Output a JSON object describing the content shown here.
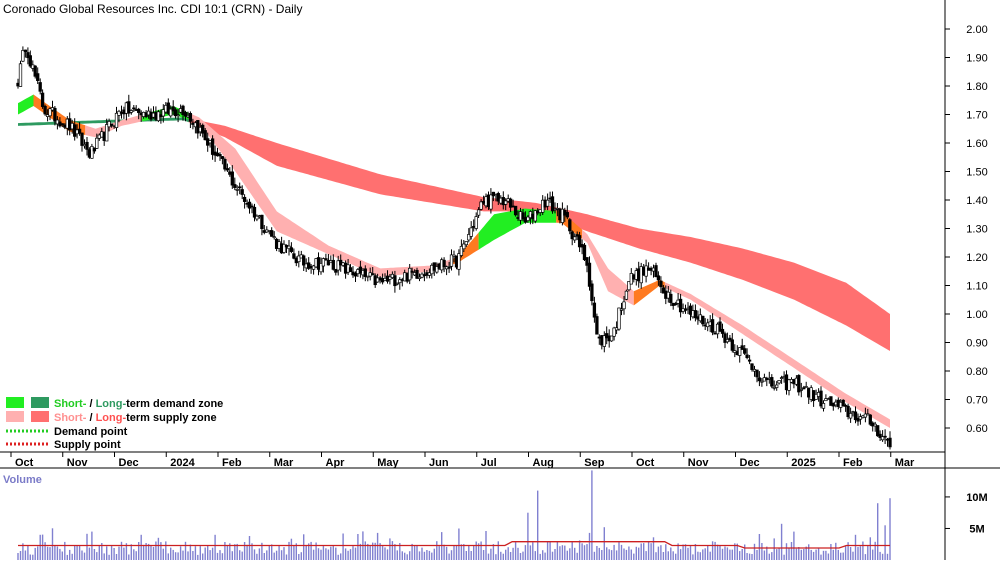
{
  "chart_data": {
    "type": "candlestick",
    "title": "Coronado Global Resources Inc. CDI 10:1 (CRN) - Daily",
    "x_ticks": [
      "Oct",
      "Nov",
      "Dec",
      "2024",
      "Feb",
      "Mar",
      "Apr",
      "May",
      "Jun",
      "Jul",
      "Aug",
      "Sep",
      "Oct",
      "Nov",
      "Dec",
      "2025",
      "Feb",
      "Mar"
    ],
    "y_ticks": [
      "2.00",
      "1.90",
      "1.80",
      "1.70",
      "1.60",
      "1.50",
      "1.40",
      "1.30",
      "1.20",
      "1.10",
      "1.00",
      "0.90",
      "0.80",
      "0.70",
      "0.60"
    ],
    "y_range": [
      0.52,
      2.05
    ],
    "price_anchors": [
      {
        "month": 0.0,
        "close": 1.82
      },
      {
        "month": 0.15,
        "close": 1.95
      },
      {
        "month": 0.5,
        "close": 1.72
      },
      {
        "month": 1.0,
        "close": 1.66
      },
      {
        "month": 1.4,
        "close": 1.56
      },
      {
        "month": 2.0,
        "close": 1.72
      },
      {
        "month": 2.5,
        "close": 1.7
      },
      {
        "month": 3.2,
        "close": 1.72
      },
      {
        "month": 3.5,
        "close": 1.65
      },
      {
        "month": 4.2,
        "close": 1.45
      },
      {
        "month": 5.0,
        "close": 1.25
      },
      {
        "month": 5.5,
        "close": 1.18
      },
      {
        "month": 6.0,
        "close": 1.18
      },
      {
        "month": 7.0,
        "close": 1.11
      },
      {
        "month": 8.0,
        "close": 1.16
      },
      {
        "month": 8.5,
        "close": 1.19
      },
      {
        "month": 9.0,
        "close": 1.4
      },
      {
        "month": 9.4,
        "close": 1.4
      },
      {
        "month": 9.8,
        "close": 1.32
      },
      {
        "month": 10.2,
        "close": 1.4
      },
      {
        "month": 10.6,
        "close": 1.33
      },
      {
        "month": 11.0,
        "close": 1.18
      },
      {
        "month": 11.2,
        "close": 0.9
      },
      {
        "month": 11.5,
        "close": 0.93
      },
      {
        "month": 11.8,
        "close": 1.12
      },
      {
        "month": 12.2,
        "close": 1.16
      },
      {
        "month": 12.5,
        "close": 1.08
      },
      {
        "month": 13.0,
        "close": 1.0
      },
      {
        "month": 13.5,
        "close": 0.95
      },
      {
        "month": 14.0,
        "close": 0.86
      },
      {
        "month": 14.5,
        "close": 0.75
      },
      {
        "month": 15.0,
        "close": 0.76
      },
      {
        "month": 15.5,
        "close": 0.7
      },
      {
        "month": 16.0,
        "close": 0.66
      },
      {
        "month": 16.5,
        "close": 0.62
      },
      {
        "month": 16.85,
        "close": 0.54
      }
    ],
    "long_band": [
      {
        "month": 0.0,
        "upper": 1.67,
        "lower": 1.66
      },
      {
        "month": 3.2,
        "upper": 1.69,
        "lower": 1.68
      },
      {
        "month": 4.0,
        "upper": 1.66,
        "lower": 1.62
      },
      {
        "month": 5.0,
        "upper": 1.6,
        "lower": 1.52
      },
      {
        "month": 7.0,
        "upper": 1.49,
        "lower": 1.42
      },
      {
        "month": 9.0,
        "upper": 1.41,
        "lower": 1.36
      },
      {
        "month": 10.0,
        "upper": 1.39,
        "lower": 1.36
      },
      {
        "month": 11.0,
        "upper": 1.35,
        "lower": 1.29
      },
      {
        "month": 12.0,
        "upper": 1.3,
        "lower": 1.23
      },
      {
        "month": 13.0,
        "upper": 1.27,
        "lower": 1.18
      },
      {
        "month": 14.0,
        "upper": 1.23,
        "lower": 1.12
      },
      {
        "month": 15.0,
        "upper": 1.18,
        "lower": 1.05
      },
      {
        "month": 16.0,
        "upper": 1.11,
        "lower": 0.96
      },
      {
        "month": 16.85,
        "upper": 1.0,
        "lower": 0.87
      }
    ],
    "short_band": [
      {
        "month": 0.0,
        "upper": 1.74,
        "lower": 1.7
      },
      {
        "month": 0.3,
        "upper": 1.77,
        "lower": 1.73
      },
      {
        "month": 1.0,
        "upper": 1.68,
        "lower": 1.64
      },
      {
        "month": 1.5,
        "upper": 1.65,
        "lower": 1.62
      },
      {
        "month": 2.0,
        "upper": 1.68,
        "lower": 1.66
      },
      {
        "month": 3.0,
        "upper": 1.73,
        "lower": 1.7
      },
      {
        "month": 3.5,
        "upper": 1.69,
        "lower": 1.67
      },
      {
        "month": 4.2,
        "upper": 1.58,
        "lower": 1.5
      },
      {
        "month": 5.0,
        "upper": 1.36,
        "lower": 1.29
      },
      {
        "month": 6.0,
        "upper": 1.24,
        "lower": 1.21
      },
      {
        "month": 7.0,
        "upper": 1.16,
        "lower": 1.13
      },
      {
        "month": 8.0,
        "upper": 1.17,
        "lower": 1.15
      },
      {
        "month": 8.5,
        "upper": 1.2,
        "lower": 1.18
      },
      {
        "month": 9.2,
        "upper": 1.35,
        "lower": 1.26
      },
      {
        "month": 9.8,
        "upper": 1.37,
        "lower": 1.32
      },
      {
        "month": 10.5,
        "upper": 1.36,
        "lower": 1.32
      },
      {
        "month": 11.0,
        "upper": 1.28,
        "lower": 1.25
      },
      {
        "month": 11.4,
        "upper": 1.16,
        "lower": 1.08
      },
      {
        "month": 11.9,
        "upper": 1.08,
        "lower": 1.03
      },
      {
        "month": 12.4,
        "upper": 1.12,
        "lower": 1.1
      },
      {
        "month": 13.0,
        "upper": 1.07,
        "lower": 1.05
      },
      {
        "month": 14.0,
        "upper": 0.96,
        "lower": 0.93
      },
      {
        "month": 15.0,
        "upper": 0.84,
        "lower": 0.81
      },
      {
        "month": 16.0,
        "upper": 0.72,
        "lower": 0.69
      },
      {
        "month": 16.85,
        "upper": 0.63,
        "lower": 0.6
      }
    ],
    "colors": {
      "short_demand": "#22ee22",
      "long_demand": "#2e9a60",
      "short_supply": "#ffb0b0",
      "long_supply": "#ff7070",
      "short_supply_over_long": "#ff7a20",
      "demand_point": "#22cc22",
      "supply_point": "#dd2020",
      "candle_up": "#ffffff",
      "candle_down": "#000000",
      "volume_bar": "#8080d0",
      "volume_avg": "#cc2020"
    },
    "legend": {
      "items": [
        {
          "label_a": "Short-",
          "sep": " / ",
          "label_b": "Long-",
          "rest": "term demand zone",
          "swatch_a": "#22ee22",
          "swatch_b": "#2e9a60",
          "color_a": "#22cc22",
          "color_b": "#2e9a60"
        },
        {
          "label_a": "Short-",
          "sep": " / ",
          "label_b": "Long-",
          "rest": "term supply zone",
          "swatch_a": "#ffb0b0",
          "swatch_b": "#ff7070",
          "color_a": "#ff9090",
          "color_b": "#ff5050"
        },
        {
          "label": "Demand point",
          "line_color": "#22cc22"
        },
        {
          "label": "Supply point",
          "line_color": "#dd2020"
        }
      ]
    },
    "volume": {
      "title": "Volume",
      "y_ticks": [
        "10M",
        "5M"
      ],
      "y_range": [
        0,
        13
      ],
      "avg_millions": 2.3,
      "spikes": [
        {
          "month": 0.45,
          "value": 4.0
        },
        {
          "month": 1.45,
          "value": 4.5
        },
        {
          "month": 2.4,
          "value": 4.0
        },
        {
          "month": 3.8,
          "value": 4.0
        },
        {
          "month": 6.3,
          "value": 4.2
        },
        {
          "month": 6.95,
          "value": 4.3
        },
        {
          "month": 8.5,
          "value": 5.0
        },
        {
          "month": 9.05,
          "value": 4.6
        },
        {
          "month": 9.85,
          "value": 7.5
        },
        {
          "month": 10.05,
          "value": 11.0
        },
        {
          "month": 11.1,
          "value": 14.2
        },
        {
          "month": 11.35,
          "value": 5.2
        },
        {
          "month": 12.3,
          "value": 3.6
        },
        {
          "month": 15.0,
          "value": 4.5
        },
        {
          "month": 16.2,
          "value": 4.0
        },
        {
          "month": 16.6,
          "value": 9.0
        },
        {
          "month": 16.75,
          "value": 5.5
        },
        {
          "month": 16.85,
          "value": 9.8
        }
      ]
    }
  }
}
